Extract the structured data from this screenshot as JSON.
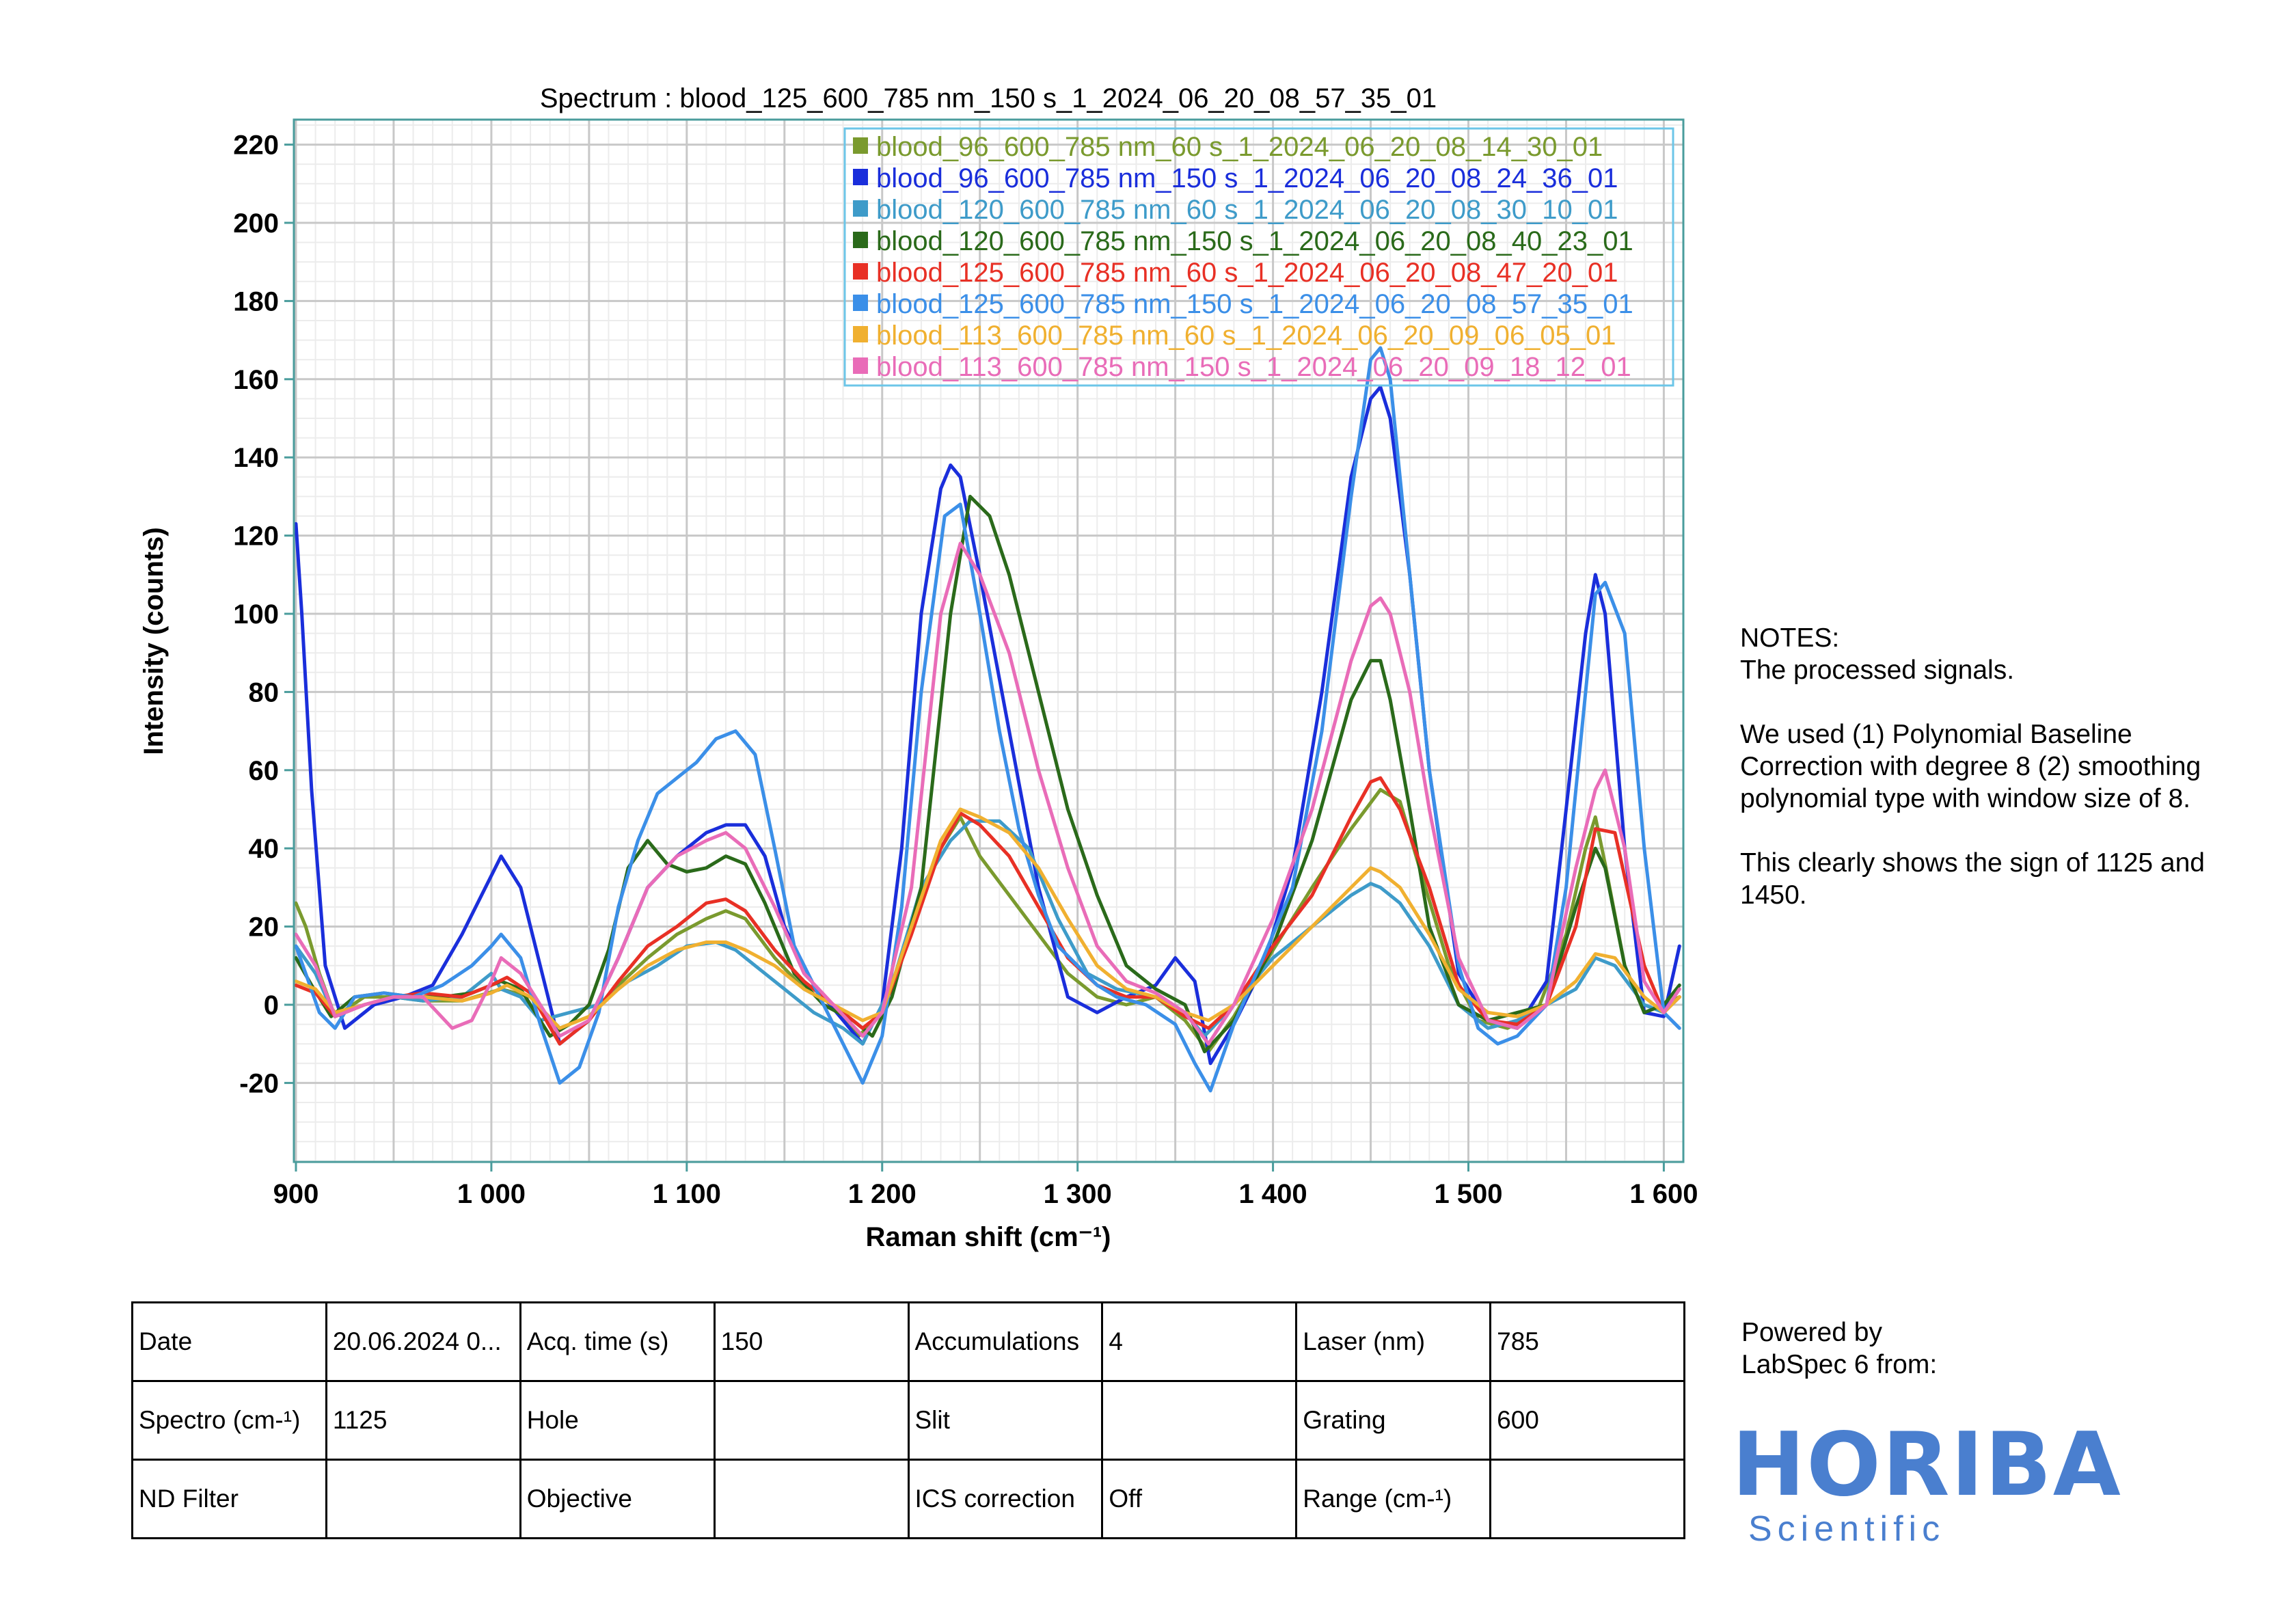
{
  "chart_data": {
    "type": "line",
    "title": "Spectrum : blood_125_600_785 nm_150 s_1_2024_06_20_08_57_35_01",
    "xlabel": "Raman shift (cm⁻¹)",
    "ylabel": "Intensity (counts)",
    "xlim": [
      900,
      1610
    ],
    "ylim": [
      -40,
      225
    ],
    "xticks": [
      900,
      1000,
      1100,
      1200,
      1300,
      1400,
      1500,
      1600
    ],
    "xtick_labels": [
      "900",
      "1 000",
      "1 100",
      "1 200",
      "1 300",
      "1 400",
      "1 500",
      "1 600"
    ],
    "yticks": [
      -20,
      0,
      20,
      40,
      60,
      80,
      100,
      120,
      140,
      160,
      180,
      200,
      220
    ],
    "grid": true,
    "legend_position": "top-right",
    "series": [
      {
        "name": "blood_96_600_785 nm_60 s_1_2024_06_20_08_14_30_01",
        "color": "#7a9a2e",
        "x": [
          900,
          905,
          912,
          920,
          935,
          950,
          965,
          985,
          1005,
          1020,
          1035,
          1050,
          1065,
          1080,
          1095,
          1110,
          1120,
          1130,
          1145,
          1160,
          1175,
          1188,
          1200,
          1215,
          1230,
          1240,
          1250,
          1265,
          1280,
          1295,
          1310,
          1325,
          1340,
          1355,
          1367,
          1380,
          1400,
          1420,
          1440,
          1455,
          1465,
          1475,
          1490,
          1505,
          1520,
          1535,
          1550,
          1560,
          1565,
          1570,
          1580,
          1590,
          1600,
          1608
        ],
        "y": [
          26,
          20,
          8,
          -3,
          2,
          2,
          1,
          1,
          4,
          2,
          -6,
          -3,
          5,
          12,
          18,
          22,
          24,
          22,
          12,
          4,
          0,
          -8,
          -2,
          20,
          40,
          48,
          38,
          28,
          18,
          8,
          2,
          0,
          2,
          -4,
          -12,
          -3,
          14,
          30,
          45,
          55,
          52,
          35,
          10,
          -4,
          -6,
          -2,
          18,
          40,
          48,
          36,
          10,
          -2,
          0,
          2
        ]
      },
      {
        "name": "blood_96_600_785 nm_150 s_1_2024_06_20_08_24_36_01",
        "color": "#1a2edb",
        "x": [
          900,
          903,
          908,
          915,
          925,
          940,
          955,
          970,
          985,
          995,
          1005,
          1015,
          1025,
          1035,
          1050,
          1065,
          1080,
          1095,
          1110,
          1120,
          1130,
          1140,
          1150,
          1165,
          1180,
          1190,
          1200,
          1210,
          1220,
          1230,
          1235,
          1240,
          1250,
          1265,
          1280,
          1295,
          1310,
          1325,
          1340,
          1350,
          1360,
          1368,
          1380,
          1395,
          1410,
          1425,
          1440,
          1450,
          1455,
          1460,
          1470,
          1480,
          1495,
          1510,
          1525,
          1540,
          1550,
          1560,
          1565,
          1570,
          1580,
          1590,
          1600,
          1608
        ],
        "y": [
          123,
          100,
          55,
          10,
          -6,
          0,
          2,
          5,
          18,
          28,
          38,
          30,
          10,
          -10,
          -4,
          12,
          30,
          38,
          44,
          46,
          46,
          38,
          20,
          5,
          -4,
          -10,
          0,
          40,
          100,
          132,
          138,
          135,
          110,
          70,
          30,
          2,
          -2,
          2,
          5,
          12,
          6,
          -15,
          -5,
          10,
          35,
          80,
          135,
          155,
          158,
          150,
          110,
          60,
          8,
          -4,
          -6,
          6,
          50,
          95,
          110,
          100,
          40,
          -2,
          -3,
          15
        ]
      },
      {
        "name": "blood_120_600_785 nm_60 s_1_2024_06_20_08_30_10_01",
        "color": "#3e9bc9",
        "x": [
          900,
          910,
          920,
          935,
          950,
          965,
          985,
          1000,
          1005,
          1015,
          1025,
          1040,
          1055,
          1070,
          1085,
          1100,
          1115,
          1125,
          1135,
          1150,
          1165,
          1180,
          1190,
          1205,
          1220,
          1235,
          1245,
          1260,
          1275,
          1290,
          1305,
          1320,
          1340,
          1355,
          1365,
          1380,
          1400,
          1420,
          1440,
          1450,
          1455,
          1465,
          1480,
          1495,
          1510,
          1525,
          1540,
          1555,
          1565,
          1575,
          1590,
          1600,
          1608
        ],
        "y": [
          15,
          8,
          -3,
          0,
          2,
          1,
          2,
          8,
          4,
          2,
          -4,
          -2,
          0,
          6,
          10,
          15,
          16,
          14,
          10,
          4,
          -2,
          -6,
          -10,
          5,
          30,
          42,
          47,
          47,
          40,
          22,
          8,
          4,
          2,
          -2,
          -8,
          0,
          12,
          20,
          28,
          31,
          30,
          26,
          15,
          0,
          -6,
          -4,
          0,
          4,
          12,
          10,
          0,
          -2,
          2
        ]
      },
      {
        "name": "blood_120_600_785 nm_150 s_1_2024_06_20_08_40_23_01",
        "color": "#2a6a1a",
        "x": [
          900,
          908,
          918,
          930,
          945,
          960,
          975,
          990,
          1005,
          1015,
          1030,
          1040,
          1050,
          1060,
          1070,
          1080,
          1090,
          1100,
          1110,
          1120,
          1130,
          1140,
          1155,
          1170,
          1185,
          1195,
          1205,
          1220,
          1235,
          1245,
          1255,
          1265,
          1280,
          1295,
          1310,
          1325,
          1340,
          1355,
          1365,
          1380,
          1400,
          1420,
          1440,
          1450,
          1455,
          1460,
          1470,
          1480,
          1495,
          1510,
          1525,
          1540,
          1555,
          1565,
          1570,
          1580,
          1590,
          1600,
          1608
        ],
        "y": [
          12,
          5,
          -3,
          2,
          3,
          2,
          2,
          3,
          6,
          4,
          -8,
          -5,
          0,
          14,
          35,
          42,
          36,
          34,
          35,
          38,
          36,
          26,
          8,
          0,
          -4,
          -8,
          2,
          30,
          100,
          130,
          125,
          110,
          80,
          50,
          28,
          10,
          4,
          0,
          -12,
          -4,
          15,
          42,
          78,
          88,
          88,
          78,
          50,
          20,
          0,
          -4,
          -2,
          0,
          25,
          40,
          35,
          10,
          -2,
          0,
          5
        ]
      },
      {
        "name": "blood_125_600_785 nm_60 s_1_2024_06_20_08_47_20_01",
        "color": "#e83025",
        "x": [
          900,
          910,
          920,
          935,
          950,
          965,
          985,
          1000,
          1008,
          1020,
          1035,
          1050,
          1065,
          1080,
          1095,
          1110,
          1120,
          1130,
          1145,
          1160,
          1175,
          1190,
          1200,
          1215,
          1230,
          1240,
          1250,
          1265,
          1280,
          1295,
          1310,
          1325,
          1340,
          1355,
          1367,
          1380,
          1400,
          1420,
          1440,
          1450,
          1455,
          1465,
          1480,
          1495,
          1510,
          1525,
          1540,
          1555,
          1565,
          1575,
          1590,
          1600,
          1608
        ],
        "y": [
          5,
          3,
          -3,
          0,
          2,
          3,
          2,
          5,
          7,
          3,
          -10,
          -4,
          6,
          15,
          20,
          26,
          27,
          24,
          14,
          6,
          0,
          -6,
          -2,
          18,
          40,
          49,
          46,
          38,
          25,
          12,
          5,
          2,
          2,
          -3,
          -6,
          0,
          15,
          28,
          48,
          57,
          58,
          50,
          30,
          5,
          -4,
          -5,
          0,
          20,
          45,
          44,
          10,
          -2,
          2
        ]
      },
      {
        "name": "blood_125_600_785 nm_150 s_1_2024_06_20_08_57_35_01",
        "color": "#3b8fe8",
        "x": [
          900,
          905,
          912,
          920,
          930,
          945,
          960,
          975,
          990,
          1000,
          1005,
          1015,
          1025,
          1035,
          1045,
          1055,
          1065,
          1075,
          1085,
          1095,
          1105,
          1115,
          1125,
          1135,
          1145,
          1155,
          1170,
          1180,
          1190,
          1200,
          1210,
          1220,
          1232,
          1240,
          1250,
          1260,
          1270,
          1280,
          1290,
          1300,
          1310,
          1320,
          1335,
          1350,
          1360,
          1368,
          1380,
          1395,
          1410,
          1425,
          1440,
          1450,
          1455,
          1460,
          1470,
          1480,
          1495,
          1505,
          1515,
          1525,
          1540,
          1550,
          1560,
          1565,
          1570,
          1580,
          1590,
          1600,
          1608
        ],
        "y": [
          15,
          8,
          -2,
          -6,
          2,
          3,
          2,
          5,
          10,
          15,
          18,
          12,
          -5,
          -20,
          -16,
          -2,
          25,
          42,
          54,
          58,
          62,
          68,
          70,
          64,
          40,
          15,
          0,
          -10,
          -20,
          -8,
          25,
          80,
          125,
          128,
          100,
          70,
          45,
          28,
          15,
          10,
          5,
          2,
          0,
          -5,
          -15,
          -22,
          -5,
          12,
          30,
          70,
          130,
          165,
          168,
          160,
          110,
          60,
          10,
          -6,
          -10,
          -8,
          0,
          30,
          80,
          105,
          108,
          95,
          40,
          -2,
          -6
        ]
      },
      {
        "name": "blood_113_600_785 nm_60 s_1_2024_06_20_09_06_05_01",
        "color": "#f0b030",
        "x": [
          900,
          910,
          920,
          935,
          950,
          965,
          985,
          1000,
          1008,
          1020,
          1035,
          1050,
          1065,
          1080,
          1095,
          1110,
          1120,
          1130,
          1145,
          1160,
          1175,
          1190,
          1200,
          1215,
          1230,
          1240,
          1250,
          1265,
          1280,
          1295,
          1310,
          1325,
          1340,
          1355,
          1367,
          1380,
          1400,
          1420,
          1440,
          1450,
          1455,
          1465,
          1480,
          1495,
          1510,
          1525,
          1540,
          1555,
          1565,
          1575,
          1590,
          1600,
          1608
        ],
        "y": [
          6,
          4,
          -2,
          0,
          2,
          2,
          1,
          3,
          5,
          2,
          -6,
          -3,
          4,
          10,
          14,
          16,
          16,
          14,
          10,
          4,
          0,
          -4,
          -2,
          20,
          42,
          50,
          48,
          44,
          35,
          22,
          10,
          4,
          2,
          -2,
          -4,
          0,
          10,
          20,
          30,
          35,
          34,
          30,
          18,
          4,
          -2,
          -3,
          0,
          6,
          13,
          12,
          2,
          -2,
          2
        ]
      },
      {
        "name": "blood_113_600_785 nm_150 s_1_2024_06_20_09_18_12_01",
        "color": "#e96cb8",
        "x": [
          900,
          910,
          920,
          935,
          950,
          965,
          980,
          990,
          1000,
          1005,
          1015,
          1025,
          1035,
          1050,
          1065,
          1080,
          1095,
          1110,
          1120,
          1130,
          1145,
          1160,
          1175,
          1190,
          1200,
          1215,
          1230,
          1240,
          1250,
          1265,
          1280,
          1295,
          1310,
          1325,
          1340,
          1355,
          1367,
          1380,
          1400,
          1420,
          1440,
          1450,
          1455,
          1460,
          1470,
          1480,
          1495,
          1510,
          1525,
          1540,
          1555,
          1565,
          1570,
          1580,
          1590,
          1600,
          1608
        ],
        "y": [
          18,
          10,
          -3,
          0,
          2,
          2,
          -6,
          -4,
          6,
          12,
          8,
          0,
          -8,
          -4,
          12,
          30,
          38,
          42,
          44,
          40,
          25,
          8,
          0,
          -8,
          -2,
          30,
          100,
          118,
          110,
          90,
          60,
          35,
          15,
          6,
          3,
          -2,
          -10,
          0,
          22,
          50,
          88,
          102,
          104,
          100,
          80,
          50,
          12,
          -4,
          -6,
          0,
          35,
          55,
          60,
          40,
          6,
          -2,
          4
        ]
      }
    ]
  },
  "notes": {
    "heading": "NOTES:",
    "line1": "The processed signals.",
    "para2": "We used (1) Polynomial Baseline Correction with degree 8 (2) smoothing polynomial type with window size of 8.",
    "para3": "This clearly shows the sign of 1125 and 1450."
  },
  "meta_table": {
    "rows": [
      [
        "Date",
        "20.06.2024 0...",
        "Acq. time (s)",
        "150",
        "Accumulations",
        "4",
        "Laser (nm)",
        "785"
      ],
      [
        "Spectro (cm-¹)",
        "1125",
        "Hole",
        "",
        "Slit",
        "",
        "Grating",
        "600"
      ],
      [
        "ND Filter",
        "",
        "Objective",
        "",
        "ICS correction",
        "Off",
        "Range (cm-¹)",
        ""
      ]
    ]
  },
  "footer": {
    "powered_line1": "Powered by",
    "powered_line2": "LabSpec 6 from:",
    "logo_brand": "HORIBA",
    "logo_sub": "Scientific",
    "logo_color": "#4a7fcf"
  }
}
